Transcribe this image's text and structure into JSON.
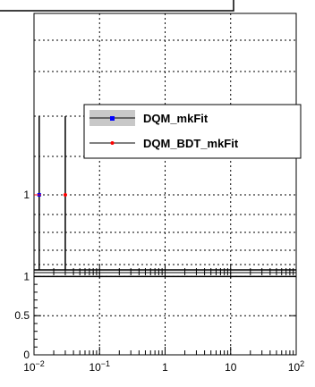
{
  "chart_data": {
    "type": "scatter",
    "xscale": "log",
    "xlim": [
      0.01,
      100
    ],
    "x_ticks": [
      0.01,
      0.1,
      1,
      10,
      100
    ],
    "x_tick_labels": [
      {
        "base": "10",
        "exp": "−2"
      },
      {
        "base": "10",
        "exp": "−1"
      },
      {
        "base": "1",
        "exp": ""
      },
      {
        "base": "10",
        "exp": ""
      },
      {
        "base": "10",
        "exp": "2"
      }
    ],
    "upper_panel": {
      "y_tick_labels": [
        "1"
      ],
      "series": [
        {
          "name": "DQM_mkFit",
          "color": "#0000ff",
          "marker": "square",
          "x": [
            0.012
          ],
          "y": [
            1
          ]
        },
        {
          "name": "DQM_BDT_mkFit",
          "color": "#ff0000",
          "marker": "circle",
          "x": [
            0.03
          ],
          "y": [
            1
          ]
        }
      ]
    },
    "lower_panel": {
      "ylim": [
        0,
        1.05
      ],
      "y_ticks": [
        0,
        0.5,
        1
      ],
      "y_tick_labels": [
        "0",
        "0.5",
        "1"
      ],
      "ratio_value": 1
    },
    "grid": true,
    "legend": {
      "placement": "upper-right",
      "entries": [
        {
          "label": "DQM_mkFit",
          "color": "#0000ff",
          "line_color": "#000000"
        },
        {
          "label": "DQM_BDT_mkFit",
          "color": "#ff0000",
          "line_color": "#000000"
        }
      ]
    }
  }
}
